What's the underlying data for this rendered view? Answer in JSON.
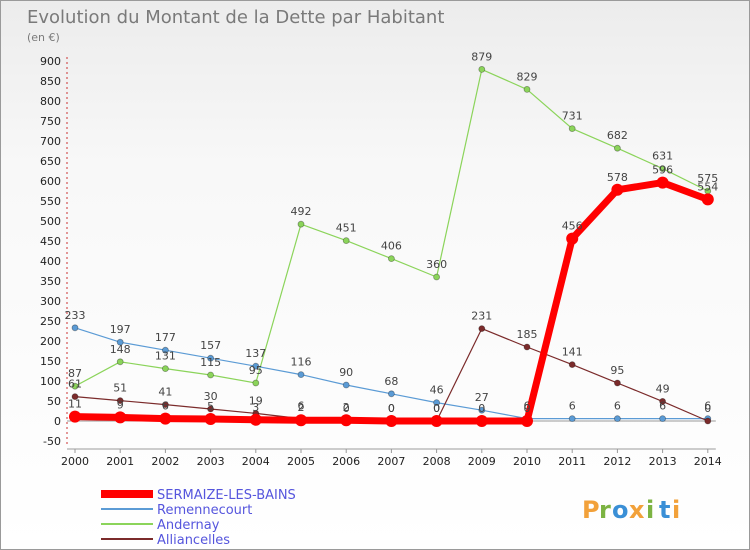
{
  "chart_data": {
    "type": "line",
    "title": "Evolution du Montant de la Dette par Habitant",
    "subtitle": "(en €)",
    "xlabel": "",
    "ylabel": "",
    "categories": [
      "2000",
      "2001",
      "2002",
      "2003",
      "2004",
      "2005",
      "2006",
      "2007",
      "2008",
      "2009",
      "2010",
      "2011",
      "2012",
      "2013",
      "2014"
    ],
    "ylim": [
      -50,
      900
    ],
    "yticks": [
      -50,
      0,
      50,
      100,
      150,
      200,
      250,
      300,
      350,
      400,
      450,
      500,
      550,
      600,
      650,
      700,
      750,
      800,
      850,
      900
    ],
    "grid": false,
    "legend_position": "bottom-left",
    "series": [
      {
        "name": "SERMAIZE-LES-BAINS",
        "color": "#ff0000",
        "values": [
          11,
          9,
          6,
          5,
          3,
          2,
          2,
          0,
          0,
          0,
          0,
          456,
          578,
          596,
          554
        ],
        "labels": [
          "11",
          "9",
          "6",
          "5",
          "3",
          "2",
          "2",
          "0",
          "0",
          "0",
          "0",
          "456",
          "578",
          "596",
          "554"
        ]
      },
      {
        "name": "Remennecourt",
        "color": "#5b9bd5",
        "values": [
          233,
          197,
          177,
          157,
          137,
          116,
          90,
          68,
          46,
          27,
          6,
          6,
          6,
          6,
          6
        ],
        "labels": [
          "233",
          "197",
          "177",
          "157",
          "137",
          "116",
          "90",
          "68",
          "46",
          "27",
          "6",
          "6",
          "6",
          "6",
          "6"
        ]
      },
      {
        "name": "Andernay",
        "color": "#8bd45a",
        "values": [
          87,
          148,
          131,
          115,
          95,
          492,
          451,
          406,
          360,
          879,
          829,
          731,
          682,
          631,
          575
        ],
        "labels": [
          "87",
          "148",
          "131",
          "115",
          "95",
          "492",
          "451",
          "406",
          "360",
          "879",
          "829",
          "731",
          "682",
          "631",
          "575"
        ]
      },
      {
        "name": "Alliancelles",
        "color": "#7b2b2b",
        "values": [
          61,
          51,
          41,
          30,
          19,
          6,
          0,
          0,
          0,
          231,
          185,
          141,
          95,
          49,
          0
        ],
        "labels": [
          "61",
          "51",
          "41",
          "30",
          "19",
          "6",
          "0",
          "0",
          "0",
          "231",
          "185",
          "141",
          "95",
          "49",
          "0"
        ]
      }
    ]
  },
  "logo": {
    "letters": [
      "P",
      "r",
      "o",
      "x",
      "i",
      "t",
      "i"
    ],
    "colors": [
      "#f2a13a",
      "#7cb342",
      "#3a8fd6",
      "#f2a13a",
      "#7cb342",
      "#3a8fd6",
      "#f2a13a"
    ]
  }
}
